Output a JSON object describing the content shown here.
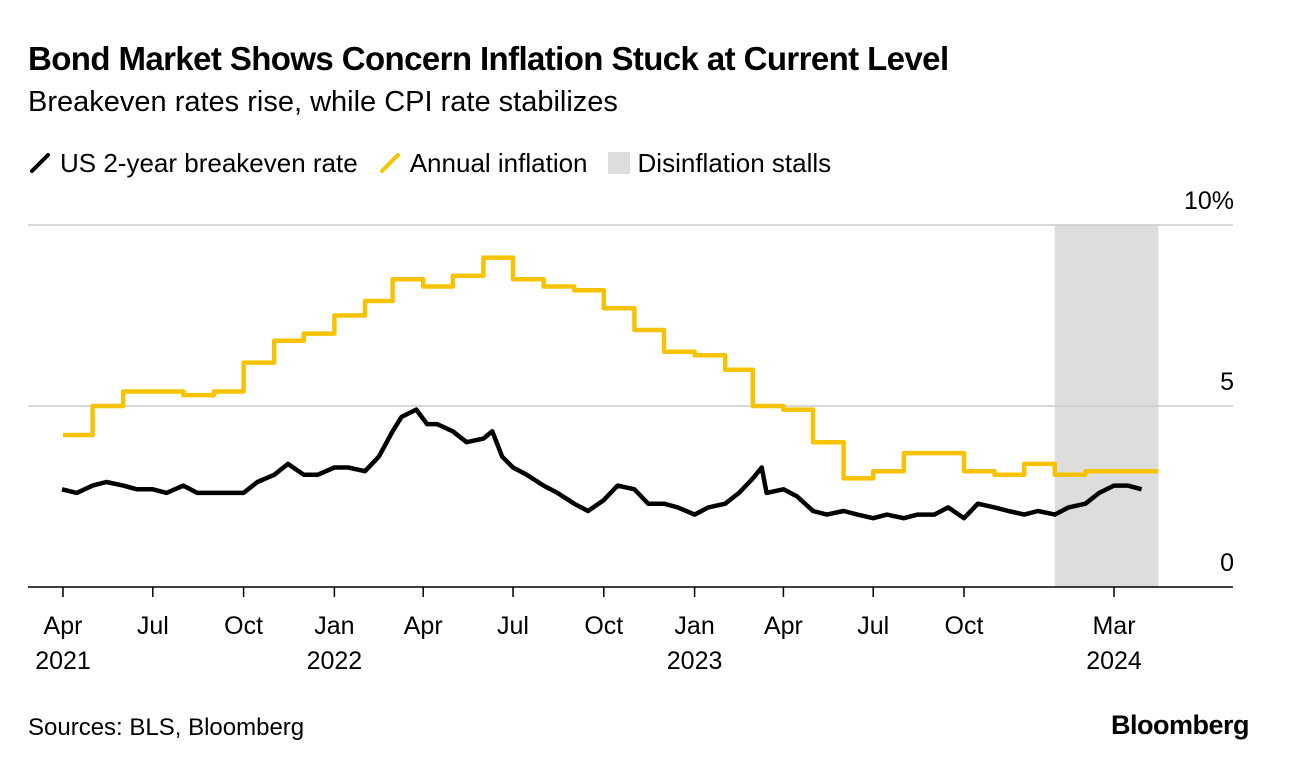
{
  "header": {
    "title": "Bond Market Shows Concern Inflation Stuck at Current Level",
    "subtitle": "Breakeven rates rise, while CPI rate stabilizes"
  },
  "legend": [
    {
      "label": "US 2-year breakeven rate",
      "color": "#000000",
      "shape": "line"
    },
    {
      "label": "Annual inflation",
      "color": "#f7c300",
      "shape": "line"
    },
    {
      "label": "Disinflation stalls",
      "color": "#dddddd",
      "shape": "box"
    }
  ],
  "footer": {
    "source": "Sources: BLS, Bloomberg",
    "brand": "Bloomberg"
  },
  "chart_data": {
    "type": "line",
    "title": "Bond Market Shows Concern Inflation Stuck at Current Level",
    "subtitle": "Breakeven rates rise, while CPI rate stabilizes",
    "ylim": [
      0,
      10
    ],
    "yaxis_position": "right",
    "yticks": [
      {
        "value": 0,
        "label": "0"
      },
      {
        "value": 5,
        "label": "5"
      },
      {
        "value": 10,
        "label": "10%"
      }
    ],
    "xlim": [
      "2021-03-01",
      "2024-06-30"
    ],
    "xticks": [
      {
        "date": "2021-04-01",
        "line1": "Apr",
        "line2": "2021"
      },
      {
        "date": "2021-07-01",
        "line1": "Jul",
        "line2": ""
      },
      {
        "date": "2021-10-01",
        "line1": "Oct",
        "line2": ""
      },
      {
        "date": "2022-01-01",
        "line1": "Jan",
        "line2": "2022"
      },
      {
        "date": "2022-04-01",
        "line1": "Apr",
        "line2": ""
      },
      {
        "date": "2022-07-01",
        "line1": "Jul",
        "line2": ""
      },
      {
        "date": "2022-10-01",
        "line1": "Oct",
        "line2": ""
      },
      {
        "date": "2023-01-01",
        "line1": "Jan",
        "line2": "2023"
      },
      {
        "date": "2023-04-01",
        "line1": "Apr",
        "line2": ""
      },
      {
        "date": "2023-07-01",
        "line1": "Jul",
        "line2": ""
      },
      {
        "date": "2023-10-01",
        "line1": "Oct",
        "line2": ""
      },
      {
        "date": "2024-03-01",
        "line1": "Mar",
        "line2": "2024"
      }
    ],
    "grid": true,
    "shaded_region": {
      "label": "Disinflation stalls",
      "start": "2024-01-01",
      "end": "2024-04-15",
      "color": "#dddddd"
    },
    "series": [
      {
        "name": "Annual inflation",
        "color": "#f7c300",
        "step": true,
        "x": [
          "2021-04-01",
          "2021-05-01",
          "2021-06-01",
          "2021-07-01",
          "2021-08-01",
          "2021-09-01",
          "2021-10-01",
          "2021-11-01",
          "2021-12-01",
          "2022-01-01",
          "2022-02-01",
          "2022-03-01",
          "2022-04-01",
          "2022-05-01",
          "2022-06-01",
          "2022-07-01",
          "2022-08-01",
          "2022-09-01",
          "2022-10-01",
          "2022-11-01",
          "2022-12-01",
          "2023-01-01",
          "2023-02-01",
          "2023-03-01",
          "2023-04-01",
          "2023-05-01",
          "2023-06-01",
          "2023-07-01",
          "2023-08-01",
          "2023-09-01",
          "2023-10-01",
          "2023-11-01",
          "2023-12-01",
          "2024-01-01",
          "2024-02-01",
          "2024-03-01"
        ],
        "values": [
          4.2,
          5.0,
          5.4,
          5.4,
          5.3,
          5.4,
          6.2,
          6.8,
          7.0,
          7.5,
          7.9,
          8.5,
          8.3,
          8.6,
          9.1,
          8.5,
          8.3,
          8.2,
          7.7,
          7.1,
          6.5,
          6.4,
          6.0,
          5.0,
          4.9,
          4.0,
          3.0,
          3.2,
          3.7,
          3.7,
          3.2,
          3.1,
          3.4,
          3.1,
          3.2,
          3.2
        ],
        "end": "2024-04-15"
      },
      {
        "name": "US 2-year breakeven rate",
        "color": "#000000",
        "step": false,
        "x": [
          "2021-03-31",
          "2021-04-15",
          "2021-05-01",
          "2021-05-15",
          "2021-06-01",
          "2021-06-15",
          "2021-07-01",
          "2021-07-15",
          "2021-08-01",
          "2021-08-15",
          "2021-09-01",
          "2021-09-15",
          "2021-10-01",
          "2021-10-15",
          "2021-11-01",
          "2021-11-15",
          "2021-12-01",
          "2021-12-15",
          "2022-01-01",
          "2022-01-15",
          "2022-02-01",
          "2022-02-15",
          "2022-03-01",
          "2022-03-10",
          "2022-03-25",
          "2022-04-05",
          "2022-04-15",
          "2022-05-01",
          "2022-05-15",
          "2022-06-01",
          "2022-06-10",
          "2022-06-20",
          "2022-07-01",
          "2022-07-15",
          "2022-08-01",
          "2022-08-15",
          "2022-09-01",
          "2022-09-15",
          "2022-10-01",
          "2022-10-15",
          "2022-11-01",
          "2022-11-15",
          "2022-12-01",
          "2022-12-15",
          "2023-01-01",
          "2023-01-15",
          "2023-02-01",
          "2023-02-15",
          "2023-03-01",
          "2023-03-10",
          "2023-03-15",
          "2023-04-01",
          "2023-04-15",
          "2023-05-01",
          "2023-05-15",
          "2023-06-01",
          "2023-06-15",
          "2023-07-01",
          "2023-07-15",
          "2023-08-01",
          "2023-08-15",
          "2023-09-01",
          "2023-09-15",
          "2023-10-01",
          "2023-10-15",
          "2023-11-01",
          "2023-11-15",
          "2023-12-01",
          "2023-12-15",
          "2024-01-01",
          "2024-01-15",
          "2024-02-01",
          "2024-02-15",
          "2024-03-01",
          "2024-03-15",
          "2024-03-29"
        ],
        "values": [
          2.7,
          2.6,
          2.8,
          2.9,
          2.8,
          2.7,
          2.7,
          2.6,
          2.8,
          2.6,
          2.6,
          2.6,
          2.6,
          2.9,
          3.1,
          3.4,
          3.1,
          3.1,
          3.3,
          3.3,
          3.2,
          3.6,
          4.3,
          4.7,
          4.9,
          4.5,
          4.5,
          4.3,
          4.0,
          4.1,
          4.3,
          3.6,
          3.3,
          3.1,
          2.8,
          2.6,
          2.3,
          2.1,
          2.4,
          2.8,
          2.7,
          2.3,
          2.3,
          2.2,
          2.0,
          2.2,
          2.3,
          2.6,
          3.0,
          3.3,
          2.6,
          2.7,
          2.5,
          2.1,
          2.0,
          2.1,
          2.0,
          1.9,
          2.0,
          1.9,
          2.0,
          2.0,
          2.2,
          1.9,
          2.3,
          2.2,
          2.1,
          2.0,
          2.1,
          2.0,
          2.2,
          2.3,
          2.6,
          2.8,
          2.8,
          2.7
        ]
      }
    ]
  }
}
